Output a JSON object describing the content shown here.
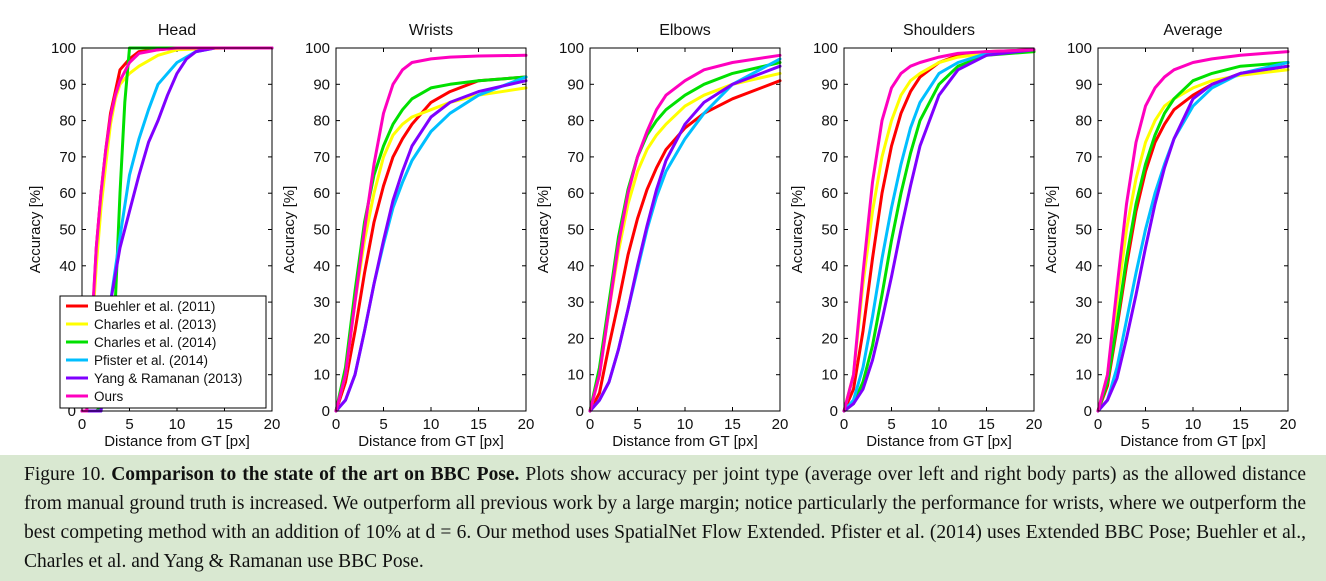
{
  "chart_data": [
    {
      "type": "line",
      "title": "Head",
      "xlabel": "Distance from GT [px]",
      "ylabel": "Accuracy [%]",
      "xlim": [
        0,
        20
      ],
      "ylim": [
        0,
        100
      ],
      "xticks": [
        "0",
        "5",
        "10",
        "15",
        "20"
      ],
      "yticks": [
        "0",
        "10",
        "20",
        "30",
        "40",
        "50",
        "60",
        "70",
        "80",
        "90",
        "100"
      ],
      "legend": "bottom-left",
      "series": [
        {
          "name": "Buehler et al. (2011)",
          "x": [
            0,
            0.5,
            1,
            1.5,
            2,
            2.5,
            3,
            3.5,
            4,
            5,
            6,
            8,
            10,
            15,
            20
          ],
          "y": [
            0,
            0,
            20,
            45,
            60,
            72,
            82,
            88,
            94,
            97,
            99,
            99.5,
            100,
            100,
            100
          ]
        },
        {
          "name": "Charles et al. (2013)",
          "x": [
            0,
            0.5,
            1,
            1.5,
            2,
            2.5,
            3,
            3.5,
            4,
            5,
            6,
            8,
            10,
            15,
            20
          ],
          "y": [
            0,
            0,
            20,
            40,
            56,
            68,
            79,
            86,
            90,
            93,
            95,
            98,
            99.5,
            100,
            100
          ]
        },
        {
          "name": "Charles et al. (2014)",
          "x": [
            0,
            0.5,
            1,
            1.5,
            2,
            2.5,
            3,
            3.5,
            4,
            4.5,
            5,
            6,
            10,
            20
          ],
          "y": [
            0,
            0,
            0,
            0,
            1,
            3,
            10,
            30,
            60,
            85,
            100,
            100,
            100,
            100
          ]
        },
        {
          "name": "Pfister et al. (2014)",
          "x": [
            0,
            2,
            3,
            4,
            5,
            6,
            7,
            8,
            10,
            12,
            14,
            20
          ],
          "y": [
            0,
            0,
            30,
            48,
            65,
            75,
            83,
            90,
            96,
            99,
            100,
            100
          ]
        },
        {
          "name": "Yang & Ramanan (2013)",
          "x": [
            0,
            2,
            3,
            4,
            5,
            6,
            7,
            8,
            9,
            10,
            11,
            12,
            14,
            20
          ],
          "y": [
            0,
            0,
            30,
            45,
            55,
            65,
            74,
            80,
            87,
            93,
            97,
            99,
            100,
            100
          ]
        },
        {
          "name": "Ours",
          "x": [
            0,
            0.5,
            1,
            1.5,
            2,
            2.5,
            3,
            3.5,
            4,
            5,
            6,
            8,
            10,
            15,
            20
          ],
          "y": [
            0,
            0,
            22,
            45,
            60,
            72,
            81,
            87,
            91,
            96,
            98.5,
            99.5,
            100,
            100,
            100
          ]
        }
      ]
    },
    {
      "type": "line",
      "title": "Wrists",
      "xlabel": "Distance from GT [px]",
      "ylabel": "Accuracy [%]",
      "xlim": [
        0,
        20
      ],
      "ylim": [
        0,
        100
      ],
      "xticks": [
        "0",
        "5",
        "10",
        "15",
        "20"
      ],
      "yticks": [
        "0",
        "10",
        "20",
        "30",
        "40",
        "50",
        "60",
        "70",
        "80",
        "90",
        "100"
      ],
      "series": [
        {
          "name": "Buehler et al. (2011)",
          "x": [
            0,
            1,
            2,
            3,
            4,
            5,
            6,
            7,
            8,
            10,
            12,
            15,
            20
          ],
          "y": [
            0,
            8,
            22,
            38,
            52,
            62,
            70,
            75,
            79,
            85,
            88,
            91,
            92
          ]
        },
        {
          "name": "Charles et al. (2013)",
          "x": [
            0,
            1,
            2,
            3,
            4,
            5,
            6,
            7,
            8,
            10,
            12,
            15,
            20
          ],
          "y": [
            0,
            10,
            30,
            47,
            60,
            70,
            76,
            79,
            81,
            83,
            85,
            87,
            89
          ]
        },
        {
          "name": "Charles et al. (2014)",
          "x": [
            0,
            1,
            2,
            3,
            4,
            5,
            6,
            7,
            8,
            10,
            12,
            15,
            20
          ],
          "y": [
            0,
            12,
            33,
            52,
            65,
            73,
            79,
            83,
            86,
            89,
            90,
            91,
            92
          ]
        },
        {
          "name": "Pfister et al. (2014)",
          "x": [
            0,
            1,
            2,
            3,
            4,
            5,
            6,
            7,
            8,
            10,
            12,
            15,
            20
          ],
          "y": [
            0,
            3,
            10,
            22,
            35,
            46,
            56,
            63,
            69,
            77,
            82,
            87,
            92
          ]
        },
        {
          "name": "Yang & Ramanan (2013)",
          "x": [
            0,
            1,
            2,
            3,
            4,
            5,
            6,
            7,
            8,
            10,
            12,
            15,
            20
          ],
          "y": [
            0,
            3,
            10,
            22,
            35,
            47,
            58,
            66,
            73,
            81,
            85,
            88,
            91
          ]
        },
        {
          "name": "Ours",
          "x": [
            0,
            1,
            2,
            3,
            4,
            5,
            6,
            7,
            8,
            10,
            12,
            15,
            20
          ],
          "y": [
            0,
            10,
            30,
            50,
            68,
            82,
            90,
            94,
            96,
            97,
            97.5,
            97.8,
            98
          ]
        }
      ]
    },
    {
      "type": "line",
      "title": "Elbows",
      "xlabel": "Distance from GT [px]",
      "ylabel": "Accuracy [%]",
      "xlim": [
        0,
        20
      ],
      "ylim": [
        0,
        100
      ],
      "xticks": [
        "0",
        "5",
        "10",
        "15",
        "20"
      ],
      "yticks": [
        "0",
        "10",
        "20",
        "30",
        "40",
        "50",
        "60",
        "70",
        "80",
        "90",
        "100"
      ],
      "series": [
        {
          "name": "Buehler et al. (2011)",
          "x": [
            0,
            1,
            2,
            3,
            4,
            5,
            6,
            7,
            8,
            10,
            12,
            15,
            20
          ],
          "y": [
            0,
            5,
            18,
            30,
            43,
            53,
            61,
            67,
            72,
            78,
            82,
            86,
            91
          ]
        },
        {
          "name": "Charles et al. (2013)",
          "x": [
            0,
            1,
            2,
            3,
            4,
            5,
            6,
            7,
            8,
            10,
            12,
            15,
            20
          ],
          "y": [
            0,
            10,
            28,
            44,
            57,
            66,
            72,
            76,
            79,
            84,
            87,
            90,
            93
          ]
        },
        {
          "name": "Charles et al. (2014)",
          "x": [
            0,
            1,
            2,
            3,
            4,
            5,
            6,
            7,
            8,
            10,
            12,
            15,
            20
          ],
          "y": [
            0,
            12,
            30,
            48,
            61,
            70,
            76,
            80,
            83,
            87,
            90,
            93,
            96
          ]
        },
        {
          "name": "Pfister et al. (2014)",
          "x": [
            0,
            1,
            2,
            3,
            4,
            5,
            6,
            7,
            8,
            10,
            12,
            15,
            20
          ],
          "y": [
            0,
            3,
            8,
            17,
            28,
            39,
            50,
            59,
            66,
            75,
            82,
            90,
            97
          ]
        },
        {
          "name": "Yang & Ramanan (2013)",
          "x": [
            0,
            1,
            2,
            3,
            4,
            5,
            6,
            7,
            8,
            10,
            12,
            15,
            20
          ],
          "y": [
            0,
            3,
            8,
            17,
            28,
            40,
            51,
            61,
            69,
            79,
            85,
            90,
            95
          ]
        },
        {
          "name": "Ours",
          "x": [
            0,
            1,
            2,
            3,
            4,
            5,
            6,
            7,
            8,
            10,
            12,
            15,
            20
          ],
          "y": [
            0,
            10,
            28,
            46,
            60,
            70,
            77,
            83,
            87,
            91,
            94,
            96,
            98
          ]
        }
      ]
    },
    {
      "type": "line",
      "title": "Shoulders",
      "xlabel": "Distance from GT [px]",
      "ylabel": "Accuracy [%]",
      "xlim": [
        0,
        20
      ],
      "ylim": [
        0,
        100
      ],
      "xticks": [
        "0",
        "5",
        "10",
        "15",
        "20"
      ],
      "yticks": [
        "0",
        "10",
        "20",
        "30",
        "40",
        "50",
        "60",
        "70",
        "80",
        "90",
        "100"
      ],
      "series": [
        {
          "name": "Buehler et al. (2011)",
          "x": [
            0,
            1,
            2,
            3,
            4,
            5,
            6,
            7,
            8,
            10,
            12,
            15,
            20
          ],
          "y": [
            0,
            6,
            22,
            42,
            60,
            73,
            82,
            88,
            92,
            96,
            98,
            99,
            99.5
          ]
        },
        {
          "name": "Charles et al. (2013)",
          "x": [
            0,
            1,
            2,
            3,
            4,
            5,
            6,
            7,
            8,
            10,
            12,
            15,
            20
          ],
          "y": [
            0,
            10,
            35,
            55,
            70,
            80,
            87,
            91,
            93,
            96,
            97.5,
            98.5,
            99
          ]
        },
        {
          "name": "Charles et al. (2014)",
          "x": [
            0,
            1,
            2,
            3,
            4,
            5,
            6,
            7,
            8,
            10,
            12,
            15,
            20
          ],
          "y": [
            0,
            2,
            8,
            18,
            32,
            47,
            60,
            71,
            80,
            90,
            95,
            98,
            99
          ]
        },
        {
          "name": "Pfister et al. (2014)",
          "x": [
            0,
            1,
            2,
            3,
            4,
            5,
            6,
            7,
            8,
            10,
            12,
            15,
            20
          ],
          "y": [
            0,
            3,
            12,
            26,
            42,
            56,
            68,
            78,
            85,
            93,
            96,
            98.5,
            99.5
          ]
        },
        {
          "name": "Yang & Ramanan (2013)",
          "x": [
            0,
            1,
            2,
            3,
            4,
            5,
            6,
            7,
            8,
            10,
            12,
            15,
            20
          ],
          "y": [
            0,
            2,
            6,
            14,
            25,
            37,
            50,
            62,
            73,
            87,
            94,
            98,
            99.5
          ]
        },
        {
          "name": "Ours",
          "x": [
            0,
            1,
            2,
            3,
            4,
            5,
            6,
            7,
            8,
            10,
            12,
            15,
            20
          ],
          "y": [
            0,
            10,
            38,
            63,
            80,
            89,
            93,
            95,
            96,
            97.5,
            98.5,
            99,
            99.5
          ]
        }
      ]
    },
    {
      "type": "line",
      "title": "Average",
      "xlabel": "Distance from GT [px]",
      "ylabel": "Accuracy [%]",
      "xlim": [
        0,
        20
      ],
      "ylim": [
        0,
        100
      ],
      "xticks": [
        "0",
        "5",
        "10",
        "15",
        "20"
      ],
      "yticks": [
        "0",
        "10",
        "20",
        "30",
        "40",
        "50",
        "60",
        "70",
        "80",
        "90",
        "100"
      ],
      "series": [
        {
          "name": "Buehler et al. (2011)",
          "x": [
            0,
            1,
            2,
            3,
            4,
            5,
            6,
            7,
            8,
            10,
            12,
            15,
            20
          ],
          "y": [
            0,
            7,
            23,
            40,
            55,
            66,
            74,
            79,
            83,
            87,
            90,
            93,
            95
          ]
        },
        {
          "name": "Charles et al. (2013)",
          "x": [
            0,
            1,
            2,
            3,
            4,
            5,
            6,
            7,
            8,
            10,
            12,
            15,
            20
          ],
          "y": [
            0,
            10,
            30,
            50,
            64,
            74,
            80,
            84,
            86,
            89,
            91,
            92.5,
            94
          ]
        },
        {
          "name": "Charles et al. (2014)",
          "x": [
            0,
            1,
            2,
            3,
            4,
            5,
            6,
            7,
            8,
            10,
            12,
            15,
            20
          ],
          "y": [
            0,
            8,
            24,
            42,
            57,
            68,
            76,
            82,
            86,
            91,
            93,
            95,
            96
          ]
        },
        {
          "name": "Pfister et al. (2014)",
          "x": [
            0,
            1,
            2,
            3,
            4,
            5,
            6,
            7,
            8,
            10,
            12,
            15,
            20
          ],
          "y": [
            0,
            3,
            12,
            25,
            38,
            50,
            60,
            68,
            75,
            84,
            89,
            93,
            96
          ]
        },
        {
          "name": "Yang & Ramanan (2013)",
          "x": [
            0,
            1,
            2,
            3,
            4,
            5,
            6,
            7,
            8,
            10,
            12,
            15,
            20
          ],
          "y": [
            0,
            3,
            9,
            20,
            32,
            45,
            57,
            67,
            75,
            86,
            90,
            93,
            95
          ]
        },
        {
          "name": "Ours",
          "x": [
            0,
            1,
            2,
            3,
            4,
            5,
            6,
            7,
            8,
            10,
            12,
            15,
            20
          ],
          "y": [
            0,
            10,
            34,
            57,
            74,
            84,
            89,
            92,
            94,
            96,
            97,
            98,
            99
          ]
        }
      ]
    }
  ],
  "series_colors": [
    "#ff0000",
    "#ffff00",
    "#00e000",
    "#00bfff",
    "#7f00ff",
    "#ff00bf"
  ],
  "caption": {
    "prefix": "Figure 10. ",
    "bold": "Comparison to the state of the art on BBC Pose.",
    "body": " Plots show accuracy per joint type (average over left and right body parts) as the allowed distance from manual ground truth is increased. We outperform all previous work by a large margin; notice particularly the performance for wrists, where we outperform the best competing method with an addition of 10% at d = 6. Our method uses SpatialNet Flow Extended. Pfister et al. (2014) uses Extended BBC Pose; Buehler et al., Charles et al. and Yang & Ramanan use BBC Pose."
  }
}
